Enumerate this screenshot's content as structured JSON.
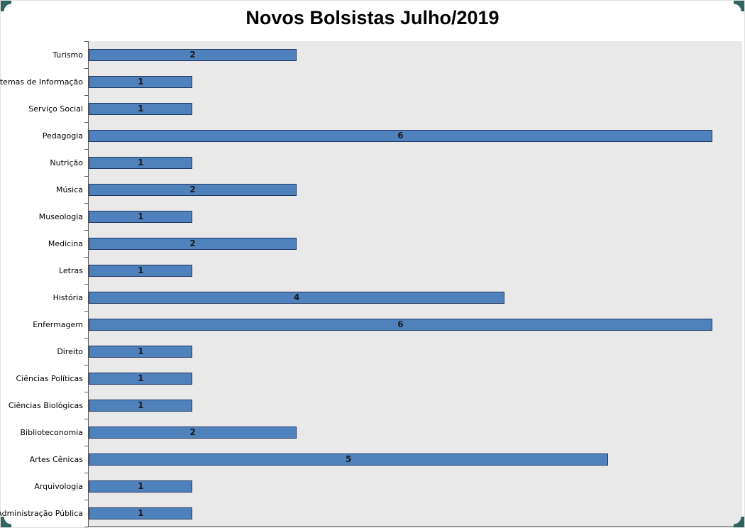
{
  "page": {
    "title": "Novos Bolsistas Julho/2019"
  },
  "chart_data": {
    "type": "bar",
    "orientation": "horizontal",
    "title": "Novos Bolsistas Julho/2019",
    "categories": [
      "Turismo",
      "Sistemas de Informação",
      "Serviço Social",
      "Pedagogia",
      "Nutrição",
      "Música",
      "Museologia",
      "Medicina",
      "Letras",
      "História",
      "Enfermagem",
      "Direito",
      "Ciências Políticas",
      "Ciências Biológicas",
      "Biblioteconomia",
      "Artes Cênicas",
      "Arquivologia",
      "Administração Pública"
    ],
    "values": [
      2,
      1,
      1,
      6,
      1,
      2,
      1,
      2,
      1,
      4,
      6,
      1,
      1,
      1,
      2,
      5,
      1,
      1
    ],
    "xlabel": "",
    "ylabel": "",
    "xlim": [
      0,
      6.28
    ],
    "data_labels": true,
    "grid": false,
    "legend": false,
    "colors": {
      "bar_fill": "#4F81BD",
      "bar_border": "#1F3864",
      "plot_bg": "#E9E9E9",
      "value_label": "#1a1a1a",
      "corner_accent": "#2F6363"
    }
  }
}
